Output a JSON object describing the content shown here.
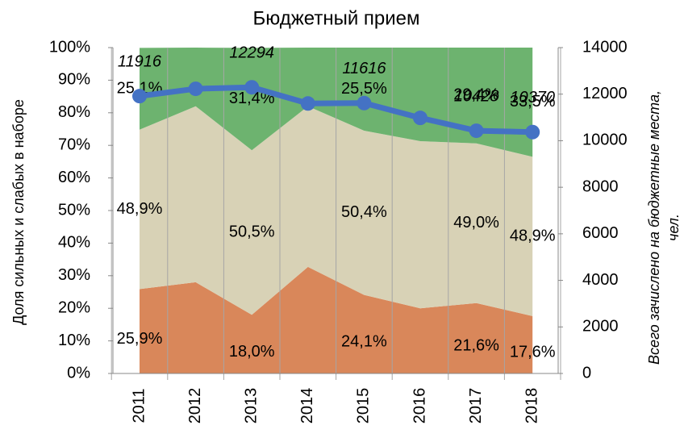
{
  "chart_data": {
    "type": "stacked-area-line",
    "title": "Бюджетный прием",
    "y_label": "Доля сильных и слабых в наборе",
    "y2_label": [
      "Всего зачислено на бюджетные места,",
      "чел."
    ],
    "categories": [
      "2011",
      "2012",
      "2013",
      "2014",
      "2015",
      "2016",
      "2017",
      "2018"
    ],
    "series": [
      {
        "color": "#d9875a",
        "values": [
          25.9,
          28,
          18,
          32.7,
          24.1,
          20,
          21.6,
          17.6
        ],
        "value_labels": [
          "25,9%",
          null,
          "18,0%",
          null,
          "24,1%",
          null,
          "21,6%",
          "17,6%"
        ]
      },
      {
        "color": "#d8d2b6",
        "values": [
          48.9,
          54,
          50.5,
          49.3,
          50.4,
          51.3,
          49.0,
          48.9
        ],
        "value_labels": [
          "48,9%",
          null,
          "50,5%",
          null,
          "50,4%",
          null,
          "49,0%",
          "48,9%"
        ]
      },
      {
        "color": "#6db36f",
        "values": [
          25.1,
          18,
          31.4,
          18,
          25.5,
          28.7,
          29.4,
          33.5
        ],
        "value_labels": [
          "25,1%",
          null,
          "31,4%",
          null,
          "25,5%",
          null,
          "29,4%",
          "33,5%"
        ]
      },
      {
        "axis": "y2",
        "color": "#4472c4",
        "values": [
          11916,
          12230,
          12294,
          11600,
          11616,
          10980,
          10428,
          10370
        ],
        "value_labels": [
          "11916",
          null,
          "12294",
          null,
          "11616",
          null,
          "10428",
          "10370"
        ]
      }
    ],
    "ylim": [
      0,
      100
    ],
    "yticks": [
      {
        "value": 0,
        "label": "0%"
      },
      {
        "value": 10,
        "label": "10%"
      },
      {
        "value": 20,
        "label": "20%"
      },
      {
        "value": 30,
        "label": "30%"
      },
      {
        "value": 40,
        "label": "40%"
      },
      {
        "value": 50,
        "label": "50%"
      },
      {
        "value": 60,
        "label": "60%"
      },
      {
        "value": 70,
        "label": "70%"
      },
      {
        "value": 80,
        "label": "80%"
      },
      {
        "value": 90,
        "label": "90%"
      },
      {
        "value": 100,
        "label": "100%"
      }
    ],
    "y2lim": [
      0,
      14000
    ],
    "y2ticks": [
      0,
      2000,
      4000,
      6000,
      8000,
      10000,
      12000,
      14000
    ]
  }
}
